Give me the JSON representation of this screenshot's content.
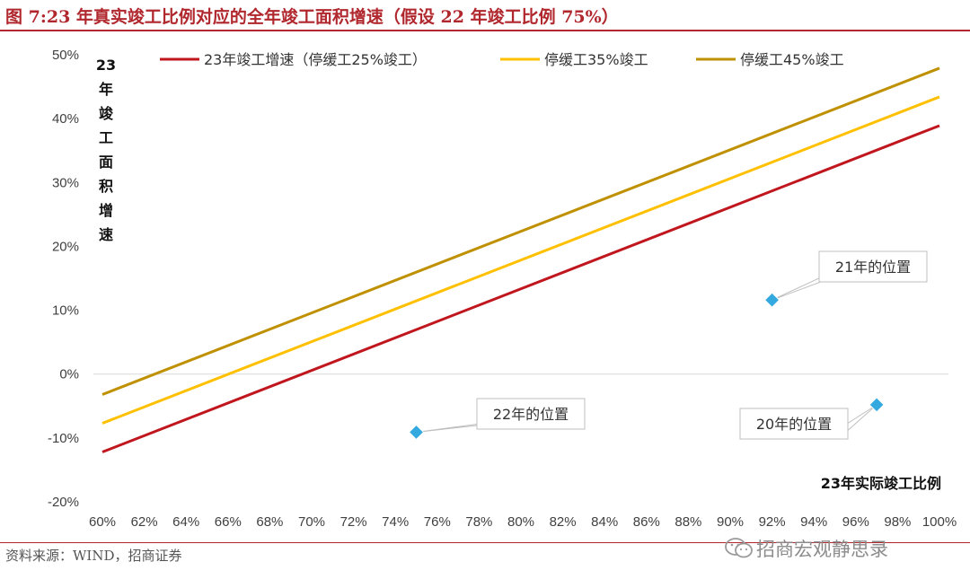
{
  "title": "图 7:23 年真实竣工比例对应的全年竣工面积增速（假设 22 年竣工比例 75%）",
  "source": "资料来源：WIND，招商证券",
  "watermark": "招商宏观静思录",
  "chart_data": {
    "type": "line",
    "title": "图 7:23 年真实竣工比例对应的全年竣工面积增速（假设 22 年竣工比例 75%）",
    "xlabel": "23年实际竣工比例",
    "ylabel": "23年竣工面积增速",
    "xlim": [
      0.6,
      1.0
    ],
    "ylim": [
      -0.2,
      0.5
    ],
    "x_ticks": [
      "60%",
      "62%",
      "64%",
      "66%",
      "68%",
      "70%",
      "72%",
      "74%",
      "76%",
      "78%",
      "80%",
      "82%",
      "84%",
      "86%",
      "88%",
      "90%",
      "92%",
      "94%",
      "96%",
      "98%",
      "100%"
    ],
    "y_ticks": [
      "50%",
      "40%",
      "30%",
      "20%",
      "10%",
      "0%",
      "-10%",
      "-20%"
    ],
    "legend_position": "top",
    "grid": false,
    "series": [
      {
        "name": "23年竣工增速（停缓工25%竣工）",
        "color": "#c0161e",
        "x": [
          0.6,
          1.0
        ],
        "y": [
          -0.122,
          0.389
        ]
      },
      {
        "name": "停缓工35%竣工",
        "color": "#ffc000",
        "x": [
          0.6,
          1.0
        ],
        "y": [
          -0.077,
          0.434
        ]
      },
      {
        "name": "停缓工45%竣工",
        "color": "#bf9000",
        "x": [
          0.6,
          1.0
        ],
        "y": [
          -0.032,
          0.479
        ]
      }
    ],
    "annotations": [
      {
        "label": "21年的位置",
        "x": 0.92,
        "y": 0.116
      },
      {
        "label": "22年的位置",
        "x": 0.75,
        "y": -0.091
      },
      {
        "label": "20年的位置",
        "x": 0.97,
        "y": -0.048
      }
    ],
    "marker_color": "#33a9e0"
  }
}
